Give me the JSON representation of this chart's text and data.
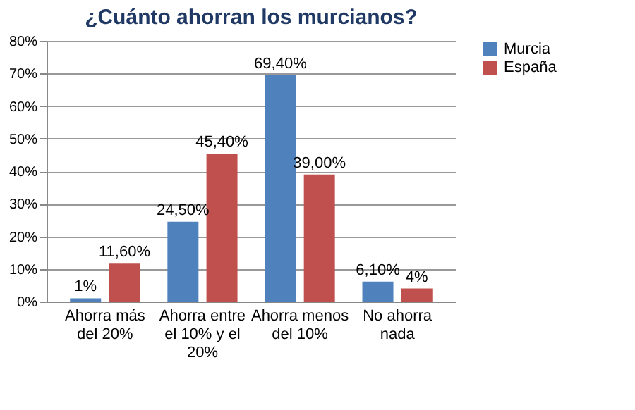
{
  "chart_data": {
    "type": "bar",
    "title": "¿Cuánto ahorran los murcianos?",
    "categories": [
      "Ahorra más del 20%",
      "Ahorra entre el 10% y el 20%",
      "Ahorra menos del 10%",
      "No ahorra nada"
    ],
    "series": [
      {
        "name": "Murcia",
        "color": "#4f81bd",
        "values": [
          1,
          24.5,
          69.4,
          6.1
        ],
        "value_labels": [
          "1%",
          "24,50%",
          "69,40%",
          "6,10%"
        ]
      },
      {
        "name": "España",
        "color": "#c0504d",
        "values": [
          11.6,
          45.4,
          39,
          4
        ],
        "value_labels": [
          "11,60%",
          "45,40%",
          "39,00%",
          "4%"
        ]
      }
    ],
    "ylim": [
      0,
      80
    ],
    "yticks": [
      {
        "value": 0,
        "label": "0%"
      },
      {
        "value": 10,
        "label": "10%"
      },
      {
        "value": 20,
        "label": "20%"
      },
      {
        "value": 30,
        "label": "30%"
      },
      {
        "value": 40,
        "label": "40%"
      },
      {
        "value": 50,
        "label": "50%"
      },
      {
        "value": 60,
        "label": "60%"
      },
      {
        "value": 70,
        "label": "70%"
      },
      {
        "value": 80,
        "label": "80%"
      }
    ],
    "grid": "y",
    "legend": "right"
  }
}
